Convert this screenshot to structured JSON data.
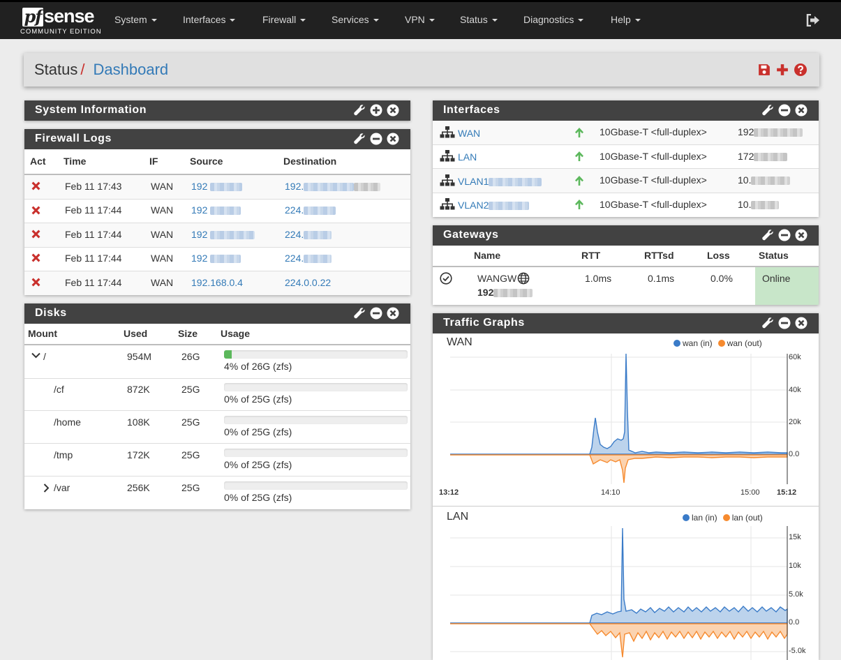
{
  "brand": {
    "logo_pf": "pf",
    "logo_sense": "sense",
    "edition": "COMMUNITY EDITION"
  },
  "nav": [
    {
      "label": "System"
    },
    {
      "label": "Interfaces"
    },
    {
      "label": "Firewall"
    },
    {
      "label": "Services"
    },
    {
      "label": "VPN"
    },
    {
      "label": "Status"
    },
    {
      "label": "Diagnostics"
    },
    {
      "label": "Help"
    }
  ],
  "breadcrumb": {
    "parent": "Status",
    "separator": "/",
    "current": "Dashboard"
  },
  "colors": {
    "navbar": "#212121",
    "panel_header": "#424242",
    "link": "#337ab7",
    "danger": "#c9302c",
    "success": "#5cb85c",
    "wan_in": "#3a7bc8",
    "wan_out": "#f68a2e"
  },
  "system_information": {
    "title": "System Information"
  },
  "firewall_logs": {
    "title": "Firewall Logs",
    "headers": [
      "Act",
      "Time",
      "IF",
      "Source",
      "Destination"
    ],
    "rows": [
      {
        "time": "Feb 11 17:43",
        "if": "WAN",
        "source": "192",
        "destination": "192."
      },
      {
        "time": "Feb 11 17:44",
        "if": "WAN",
        "source": "192",
        "destination": "224."
      },
      {
        "time": "Feb 11 17:44",
        "if": "WAN",
        "source": "192",
        "destination": "224."
      },
      {
        "time": "Feb 11 17:44",
        "if": "WAN",
        "source": "192",
        "destination": "224."
      },
      {
        "time": "Feb 11 17:44",
        "if": "WAN",
        "source": "192.168.0.4",
        "destination": "224.0.0.22"
      }
    ]
  },
  "disks": {
    "title": "Disks",
    "headers": [
      "Mount",
      "Used",
      "Size",
      "Usage"
    ],
    "rows": [
      {
        "mount": "/",
        "used": "954M",
        "size": "26G",
        "usage_text": "4% of 26G (zfs)",
        "usage_pct": 4
      },
      {
        "mount": "/cf",
        "used": "872K",
        "size": "25G",
        "usage_text": "0% of 25G (zfs)",
        "usage_pct": 0
      },
      {
        "mount": "/home",
        "used": "108K",
        "size": "25G",
        "usage_text": "0% of 25G (zfs)",
        "usage_pct": 0
      },
      {
        "mount": "/tmp",
        "used": "172K",
        "size": "25G",
        "usage_text": "0% of 25G (zfs)",
        "usage_pct": 0
      },
      {
        "mount": "/var",
        "used": "256K",
        "size": "25G",
        "usage_text": "0% of 25G (zfs)",
        "usage_pct": 0
      }
    ]
  },
  "interfaces": {
    "title": "Interfaces",
    "rows": [
      {
        "name": "WAN",
        "media": "10Gbase-T <full-duplex>",
        "ip": "192"
      },
      {
        "name": "LAN",
        "media": "10Gbase-T <full-duplex>",
        "ip": "172"
      },
      {
        "name": "VLAN1",
        "media": "10Gbase-T <full-duplex>",
        "ip": "10."
      },
      {
        "name": "VLAN2",
        "media": "10Gbase-T <full-duplex>",
        "ip": "10."
      }
    ]
  },
  "gateways": {
    "title": "Gateways",
    "headers": [
      "Name",
      "RTT",
      "RTTsd",
      "Loss",
      "Status"
    ],
    "rows": [
      {
        "name": "WANGW",
        "ip": "192",
        "rtt": "1.0ms",
        "rttsd": "0.1ms",
        "loss": "0.0%",
        "status": "Online"
      }
    ]
  },
  "traffic_graphs": {
    "title": "Traffic Graphs",
    "wan": {
      "title": "WAN",
      "legend_in": "wan (in)",
      "legend_out": "wan (out)",
      "y_ticks": [
        "60k",
        "40k",
        "20k",
        "0.0"
      ],
      "x_ticks": [
        "13:12",
        "14:10",
        "15:00",
        "15:12"
      ]
    },
    "lan": {
      "title": "LAN",
      "legend_in": "lan (in)",
      "legend_out": "lan (out)",
      "y_ticks": [
        "15k",
        "10k",
        "5.0k",
        "0.0",
        "-5.0k"
      ]
    }
  }
}
